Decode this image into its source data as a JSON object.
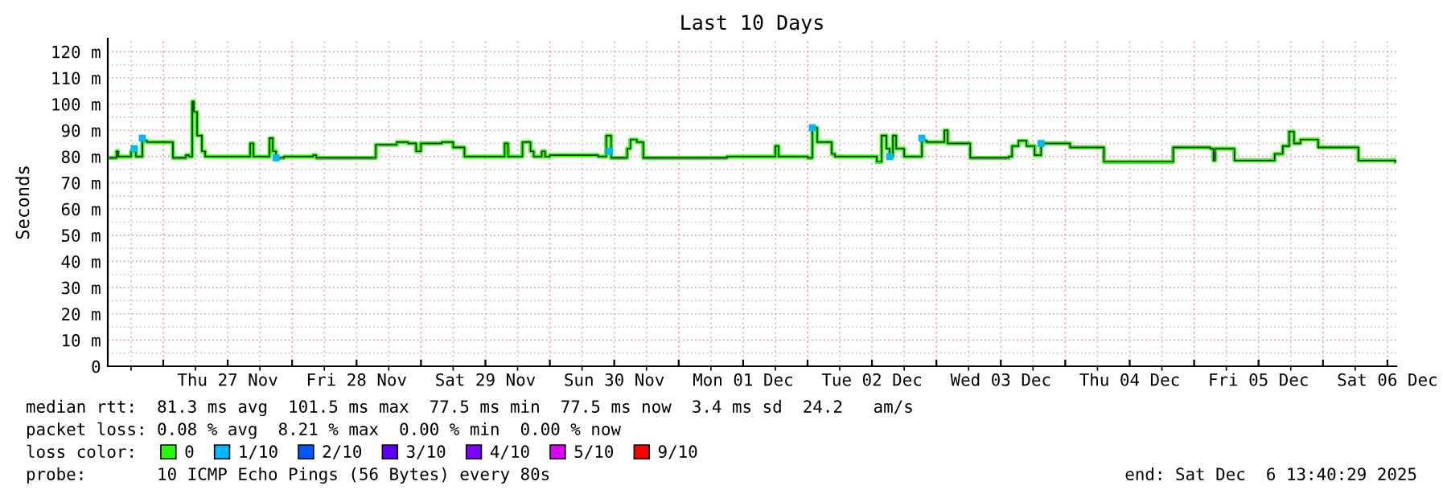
{
  "chart_data": {
    "type": "step",
    "title": "Last 10 Days",
    "ylabel": "Seconds",
    "x": [
      "2025-11-26T14:06",
      "2025-11-26T15:18",
      "2025-11-26T15:36",
      "2025-11-26T18:00",
      "2025-11-26T18:36",
      "2025-11-26T18:54",
      "2025-11-26T20:06",
      "2025-11-26T21:00",
      "2025-11-27T01:48",
      "2025-11-27T04:12",
      "2025-11-27T04:48",
      "2025-11-27T05:24",
      "2025-11-27T05:42",
      "2025-11-27T06:18",
      "2025-11-27T07:12",
      "2025-11-27T07:48",
      "2025-11-27T16:12",
      "2025-11-27T16:48",
      "2025-11-27T19:48",
      "2025-11-27T20:24",
      "2025-11-27T21:00",
      "2025-11-27T22:30",
      "2025-11-28T03:54",
      "2025-11-28T04:30",
      "2025-11-28T15:36",
      "2025-11-28T19:30",
      "2025-11-28T21:36",
      "2025-11-28T23:06",
      "2025-11-29T00:00",
      "2025-11-29T03:54",
      "2025-11-29T06:00",
      "2025-11-29T08:06",
      "2025-11-29T15:00",
      "2025-11-29T15:36",
      "2025-11-29T16:12",
      "2025-11-29T18:54",
      "2025-11-29T20:24",
      "2025-11-29T21:00",
      "2025-11-29T22:30",
      "2025-11-29T23:06",
      "2025-11-30T00:00",
      "2025-11-30T09:00",
      "2025-11-30T10:30",
      "2025-11-30T11:24",
      "2025-11-30T14:24",
      "2025-11-30T15:00",
      "2025-11-30T16:12",
      "2025-11-30T17:24",
      "2025-12-01T09:00",
      "2025-12-01T18:00",
      "2025-12-01T18:36",
      "2025-12-02T00:00",
      "2025-12-02T00:54",
      "2025-12-02T01:48",
      "2025-12-02T04:30",
      "2025-12-02T05:06",
      "2025-12-02T12:00",
      "2025-12-02T12:54",
      "2025-12-02T13:48",
      "2025-12-02T14:42",
      "2025-12-02T15:18",
      "2025-12-02T15:54",
      "2025-12-02T16:30",
      "2025-12-02T18:00",
      "2025-12-02T21:18",
      "2025-12-02T22:12",
      "2025-12-03T01:30",
      "2025-12-03T02:06",
      "2025-12-03T06:00",
      "2025-12-03T06:18",
      "2025-12-03T13:30",
      "2025-12-03T14:06",
      "2025-12-03T15:18",
      "2025-12-03T16:48",
      "2025-12-03T18:18",
      "2025-12-03T19:30",
      "2025-12-04T00:00",
      "2025-12-04T00:54",
      "2025-12-04T06:00",
      "2025-12-04T07:12",
      "2025-12-04T19:30",
      "2025-12-04T20:06",
      "2025-12-05T03:00",
      "2025-12-05T03:36",
      "2025-12-05T03:54",
      "2025-12-05T06:36",
      "2025-12-05T07:30",
      "2025-12-05T14:24",
      "2025-12-05T15:00",
      "2025-12-05T16:30",
      "2025-12-05T17:42",
      "2025-12-05T18:36",
      "2025-12-05T19:48",
      "2025-12-05T23:06",
      "2025-12-06T05:24",
      "2025-12-06T06:36",
      "2025-12-06T13:30"
    ],
    "series": [
      {
        "name": "0",
        "color": "#26ff00",
        "values": [
          79.5,
          82,
          80,
          82,
          83,
          80,
          86,
          85.5,
          79.5,
          80.5,
          80,
          101,
          97,
          88,
          82,
          80,
          85,
          80,
          87,
          82,
          79.5,
          80,
          80.5,
          79.5,
          84.5,
          85.5,
          85,
          82,
          85,
          85.5,
          83.5,
          80,
          80,
          85,
          80,
          85.5,
          82,
          80,
          82,
          80,
          80.5,
          80,
          88,
          79.5,
          83,
          86.5,
          85.5,
          79.5,
          80,
          84,
          80,
          79.5,
          91,
          85.5,
          81,
          80,
          80,
          78,
          88,
          83,
          80,
          88,
          83,
          80,
          86,
          85.5,
          90,
          85,
          85,
          79.5,
          80,
          84,
          86,
          84,
          80.5,
          85,
          85,
          83.5,
          83.5,
          78,
          78,
          83.5,
          83,
          78.5,
          83,
          83,
          78.5,
          78.5,
          81,
          84,
          89.5,
          85,
          86.5,
          83.5,
          83.5,
          78.5,
          78
        ]
      },
      {
        "name": "1/10",
        "color": "#00b8ff",
        "type": "scatter",
        "x": [
          "2025-11-26T18:36",
          "2025-11-26T20:06",
          "2025-11-27T21:00",
          "2025-11-30T11:06",
          "2025-12-02T00:54",
          "2025-12-02T15:18",
          "2025-12-02T21:18",
          "2025-12-03T19:30"
        ],
        "values": [
          83,
          87,
          79.5,
          82,
          91,
          80,
          87,
          85
        ]
      },
      {
        "name": "2/10",
        "color": "#0059ff",
        "type": "scatter",
        "values": [
          null,
          null,
          null,
          null,
          null,
          null,
          null,
          null,
          null,
          null,
          null,
          null,
          null,
          null,
          null,
          null,
          null,
          null,
          null,
          null,
          null,
          null,
          null,
          null,
          null,
          null,
          null,
          null,
          null,
          null,
          null,
          null,
          null,
          null,
          null,
          null,
          null,
          null,
          null,
          null,
          null,
          null,
          null,
          null,
          null,
          null,
          null,
          null,
          null,
          null,
          null,
          null,
          null,
          null,
          null,
          null,
          null,
          null,
          null,
          null,
          null,
          null,
          null,
          null,
          null,
          null,
          null,
          null,
          null,
          null,
          null,
          null,
          null,
          null,
          null,
          null,
          null,
          null,
          null,
          null,
          null,
          null,
          null,
          null,
          null,
          null,
          null,
          null,
          null,
          null,
          null,
          null,
          null,
          null,
          null,
          null,
          null
        ]
      },
      {
        "name": "3/10",
        "color": "#5e00ff",
        "type": "scatter",
        "values": [
          null,
          null,
          null,
          null,
          null,
          null,
          null,
          null,
          null,
          null,
          null,
          null,
          null,
          null,
          null,
          null,
          null,
          null,
          null,
          null,
          null,
          null,
          null,
          null,
          null,
          null,
          null,
          null,
          null,
          null,
          null,
          null,
          null,
          null,
          null,
          null,
          null,
          null,
          null,
          null,
          null,
          null,
          null,
          null,
          null,
          null,
          null,
          null,
          null,
          null,
          null,
          null,
          null,
          null,
          null,
          null,
          null,
          null,
          null,
          null,
          null,
          null,
          null,
          null,
          null,
          null,
          null,
          null,
          null,
          null,
          null,
          null,
          null,
          null,
          null,
          null,
          null,
          null,
          null,
          null,
          null,
          null,
          null,
          null,
          null,
          null,
          null,
          null,
          null,
          null,
          null,
          null,
          null,
          null,
          null,
          null,
          null
        ]
      },
      {
        "name": "4/10",
        "color": "#7e00ff",
        "type": "scatter",
        "values": [
          null,
          null,
          null,
          null,
          null,
          null,
          null,
          null,
          null,
          null,
          null,
          null,
          null,
          null,
          null,
          null,
          null,
          null,
          null,
          null,
          null,
          null,
          null,
          null,
          null,
          null,
          null,
          null,
          null,
          null,
          null,
          null,
          null,
          null,
          null,
          null,
          null,
          null,
          null,
          null,
          null,
          null,
          null,
          null,
          null,
          null,
          null,
          null,
          null,
          null,
          null,
          null,
          null,
          null,
          null,
          null,
          null,
          null,
          null,
          null,
          null,
          null,
          null,
          null,
          null,
          null,
          null,
          null,
          null,
          null,
          null,
          null,
          null,
          null,
          null,
          null,
          null,
          null,
          null,
          null,
          null,
          null,
          null,
          null,
          null,
          null,
          null,
          null,
          null,
          null,
          null,
          null,
          null,
          null,
          null,
          null,
          null
        ]
      },
      {
        "name": "5/10",
        "color": "#dd00ff",
        "type": "scatter",
        "values": [
          null,
          null,
          null,
          null,
          null,
          null,
          null,
          null,
          null,
          null,
          null,
          null,
          null,
          null,
          null,
          null,
          null,
          null,
          null,
          null,
          null,
          null,
          null,
          null,
          null,
          null,
          null,
          null,
          null,
          null,
          null,
          null,
          null,
          null,
          null,
          null,
          null,
          null,
          null,
          null,
          null,
          null,
          null,
          null,
          null,
          null,
          null,
          null,
          null,
          null,
          null,
          null,
          null,
          null,
          null,
          null,
          null,
          null,
          null,
          null,
          null,
          null,
          null,
          null,
          null,
          null,
          null,
          null,
          null,
          null,
          null,
          null,
          null,
          null,
          null,
          null,
          null,
          null,
          null,
          null,
          null,
          null,
          null,
          null,
          null,
          null,
          null,
          null,
          null,
          null,
          null,
          null,
          null,
          null,
          null,
          null,
          null
        ]
      },
      {
        "name": "9/10",
        "color": "#ff0000",
        "type": "scatter",
        "values": [
          null,
          null,
          null,
          null,
          null,
          null,
          null,
          null,
          null,
          null,
          null,
          null,
          null,
          null,
          null,
          null,
          null,
          null,
          null,
          null,
          null,
          null,
          null,
          null,
          null,
          null,
          null,
          null,
          null,
          null,
          null,
          null,
          null,
          null,
          null,
          null,
          null,
          null,
          null,
          null,
          null,
          null,
          null,
          null,
          null,
          null,
          null,
          null,
          null,
          null,
          null,
          null,
          null,
          null,
          null,
          null,
          null,
          null,
          null,
          null,
          null,
          null,
          null,
          null,
          null,
          null,
          null,
          null,
          null,
          null,
          null,
          null,
          null,
          null,
          null,
          null,
          null,
          null,
          null,
          null,
          null,
          null,
          null,
          null,
          null,
          null,
          null,
          null,
          null,
          null,
          null,
          null,
          null,
          null,
          null,
          null,
          null
        ]
      }
    ],
    "legend": "bottom",
    "legend_title": "loss color:",
    "grid": true,
    "xlim": [
      "2025-11-26T13:40",
      "2025-12-06T13:40"
    ],
    "xticks": [
      {
        "value": "2025-11-27T00:00",
        "label": null
      },
      {
        "value": "2025-11-27T12:00",
        "label": "Thu 27 Nov"
      },
      {
        "value": "2025-11-28T00:00",
        "label": null
      },
      {
        "value": "2025-11-28T12:00",
        "label": "Fri 28 Nov"
      },
      {
        "value": "2025-11-29T00:00",
        "label": null
      },
      {
        "value": "2025-11-29T12:00",
        "label": "Sat 29 Nov"
      },
      {
        "value": "2025-11-30T00:00",
        "label": null
      },
      {
        "value": "2025-11-30T12:00",
        "label": "Sun 30 Nov"
      },
      {
        "value": "2025-12-01T00:00",
        "label": null
      },
      {
        "value": "2025-12-01T12:00",
        "label": "Mon 01 Dec"
      },
      {
        "value": "2025-12-02T00:00",
        "label": null
      },
      {
        "value": "2025-12-02T12:00",
        "label": "Tue 02 Dec"
      },
      {
        "value": "2025-12-03T00:00",
        "label": null
      },
      {
        "value": "2025-12-03T12:00",
        "label": "Wed 03 Dec"
      },
      {
        "value": "2025-12-04T00:00",
        "label": null
      },
      {
        "value": "2025-12-04T12:00",
        "label": "Thu 04 Dec"
      },
      {
        "value": "2025-12-05T00:00",
        "label": null
      },
      {
        "value": "2025-12-05T12:00",
        "label": "Fri 05 Dec"
      },
      {
        "value": "2025-12-06T00:00",
        "label": null
      },
      {
        "value": "2025-12-06T12:00",
        "label": "Sat 06 Dec"
      }
    ],
    "ylim": [
      0,
      125
    ],
    "yticks": [
      0,
      {
        "value": 10,
        "label": "10 m"
      },
      {
        "value": 20,
        "label": "20 m"
      },
      {
        "value": 30,
        "label": "30 m"
      },
      {
        "value": 40,
        "label": "40 m"
      },
      {
        "value": 50,
        "label": "50 m"
      },
      {
        "value": 60,
        "label": "60 m"
      },
      {
        "value": 70,
        "label": "70 m"
      },
      {
        "value": 80,
        "label": "80 m"
      },
      {
        "value": 90,
        "label": "90 m"
      },
      {
        "value": 100,
        "label": "100 m"
      },
      {
        "value": 110,
        "label": "110 m"
      },
      {
        "value": 120,
        "label": "120 m"
      }
    ],
    "annotations": [
      "median rtt:  81.3 ms avg  101.5 ms max  77.5 ms min  77.5 ms now  3.4 ms sd  24.2   am/s",
      "packet loss: 0.08 % avg  8.21 % max  0.00 % min  0.00 % now",
      "probe:       10 ICMP Echo Pings (56 Bytes) every 80s",
      "end: Sat Dec  6 13:40:29 2025"
    ]
  }
}
